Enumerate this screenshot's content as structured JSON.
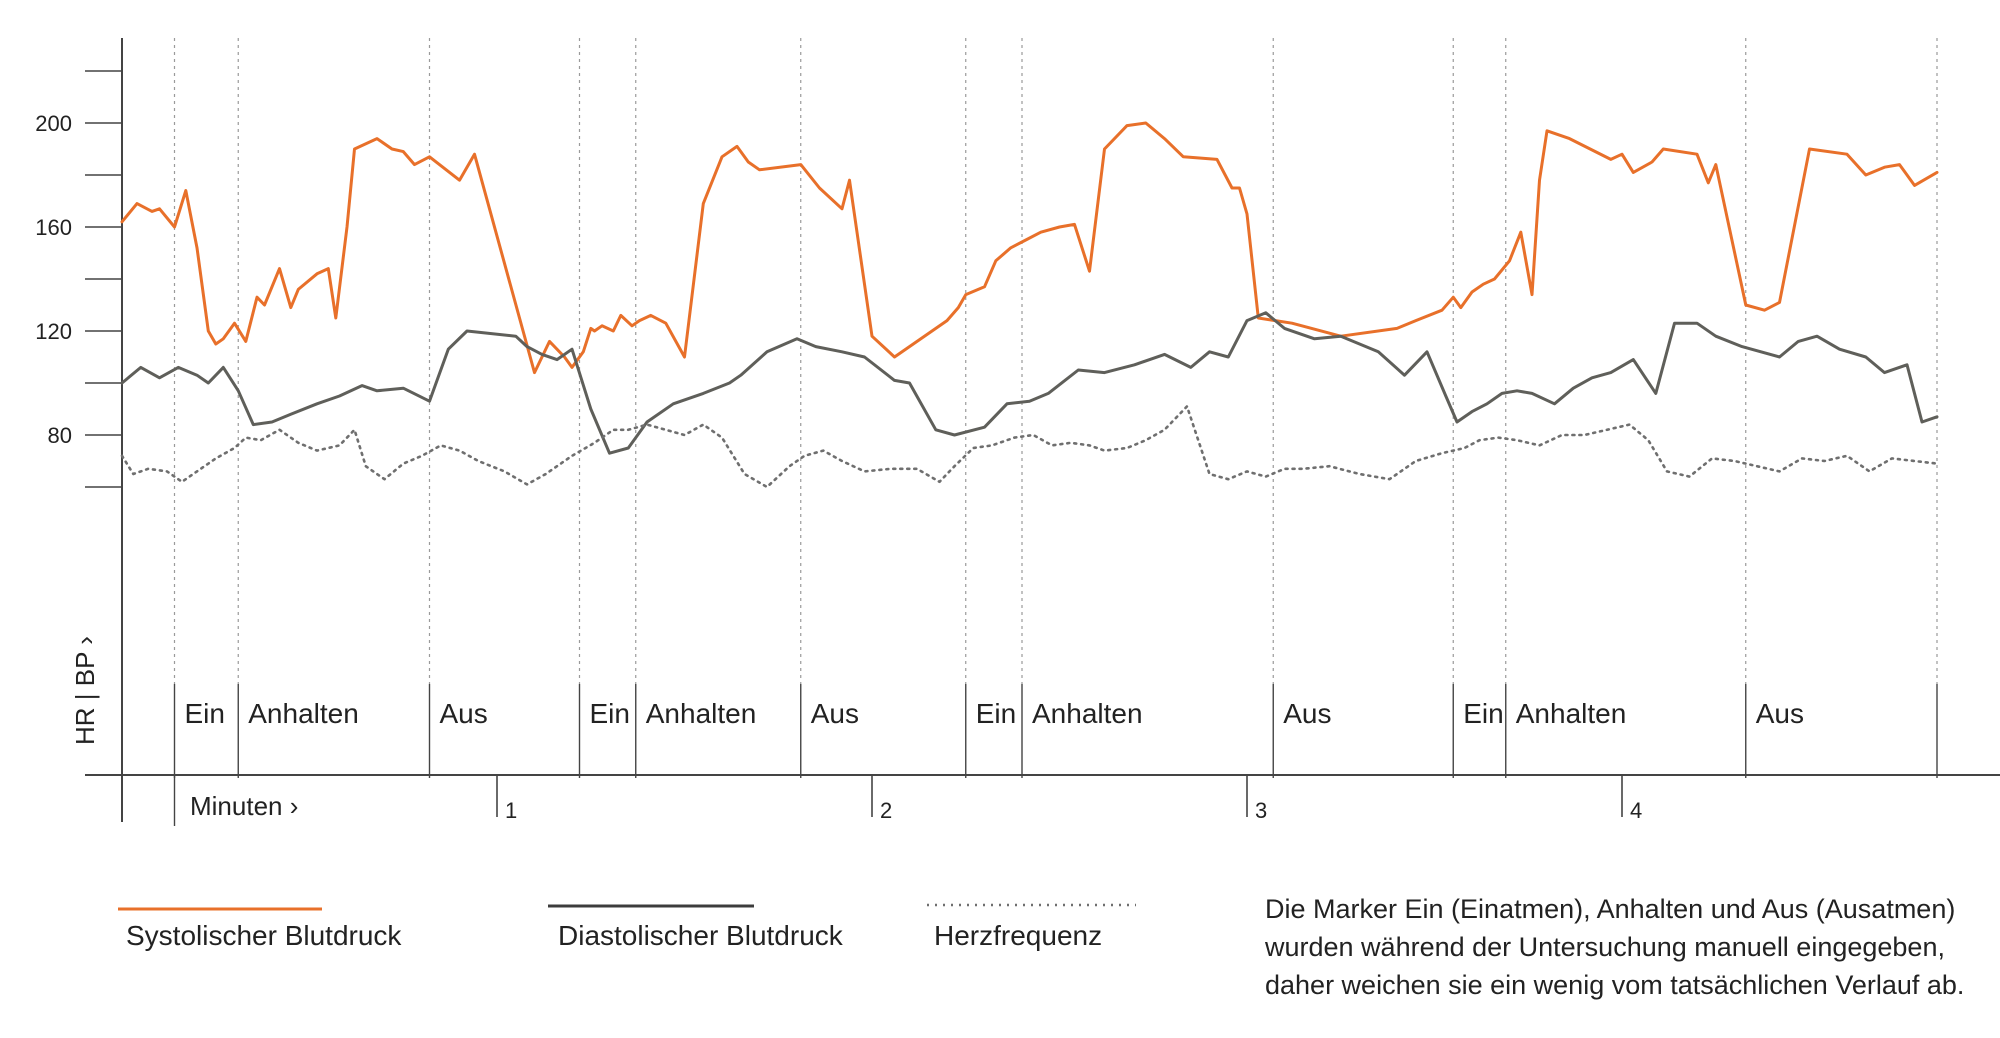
{
  "chart_data": {
    "type": "line",
    "title": "",
    "ylabel": "HR | BP ›",
    "xlabel": "Minuten ›",
    "ylim": [
      40,
      230
    ],
    "xlim": [
      0,
      4.84
    ],
    "y_ticks": [
      "200",
      "160",
      "120",
      "80"
    ],
    "y_tick_values": [
      200,
      160,
      120,
      80
    ],
    "y_minor_ticks": [
      60,
      100,
      140,
      180,
      220
    ],
    "x_ticks": [
      "1",
      "2",
      "3",
      "4"
    ],
    "x_tick_values": [
      1,
      2,
      3,
      4
    ],
    "phases": [
      {
        "label": "Ein",
        "start": 0.14
      },
      {
        "label": "Anhalten",
        "start": 0.31
      },
      {
        "label": "Aus",
        "start": 0.82
      },
      {
        "label": "Ein",
        "start": 1.22
      },
      {
        "label": "Anhalten",
        "start": 1.37
      },
      {
        "label": "Aus",
        "start": 1.81
      },
      {
        "label": "Ein",
        "start": 2.25
      },
      {
        "label": "Anhalten",
        "start": 2.4
      },
      {
        "label": "Aus",
        "start": 3.07
      },
      {
        "label": "Ein",
        "start": 3.55
      },
      {
        "label": "Anhalten",
        "start": 3.69
      },
      {
        "label": "Aus",
        "start": 4.33
      }
    ],
    "phase_end": 4.84,
    "colors": {
      "systolic": "#e8702a",
      "diastolic": "#5f5f5a",
      "heart_rate": "#6f6f6f",
      "axis": "#444444",
      "grid": "#9a9a9a"
    },
    "series": [
      {
        "name": "Systolischer Blutdruck",
        "x": [
          0,
          0.04,
          0.08,
          0.1,
          0.14,
          0.17,
          0.2,
          0.23,
          0.25,
          0.27,
          0.3,
          0.33,
          0.36,
          0.38,
          0.42,
          0.45,
          0.47,
          0.52,
          0.55,
          0.57,
          0.6,
          0.62,
          0.68,
          0.72,
          0.75,
          0.78,
          0.82,
          0.9,
          0.94,
          1.1,
          1.14,
          1.18,
          1.2,
          1.23,
          1.25,
          1.26,
          1.28,
          1.31,
          1.33,
          1.36,
          1.38,
          1.41,
          1.45,
          1.5,
          1.55,
          1.6,
          1.64,
          1.67,
          1.7,
          1.81,
          1.86,
          1.92,
          1.94,
          2.0,
          2.06,
          2.2,
          2.23,
          2.25,
          2.3,
          2.33,
          2.37,
          2.41,
          2.45,
          2.5,
          2.54,
          2.58,
          2.62,
          2.68,
          2.73,
          2.78,
          2.83,
          2.92,
          2.96,
          2.98,
          3.0,
          3.03,
          3.12,
          3.25,
          3.4,
          3.45,
          3.52,
          3.55,
          3.57,
          3.6,
          3.63,
          3.66,
          3.7,
          3.73,
          3.76,
          3.78,
          3.8,
          3.86,
          3.97,
          4.0,
          4.03,
          4.08,
          4.11,
          4.2,
          4.23,
          4.25,
          4.33,
          4.38,
          4.42,
          4.5,
          4.6,
          4.65,
          4.7,
          4.74,
          4.78,
          4.84
        ],
        "values": [
          162,
          169,
          166,
          167,
          160,
          174,
          152,
          120,
          115,
          117,
          123,
          116,
          133,
          130,
          144,
          129,
          136,
          142,
          144,
          125,
          160,
          190,
          194,
          190,
          189,
          184,
          187,
          178,
          188,
          104,
          116,
          110,
          106,
          112,
          121,
          120,
          122,
          120,
          126,
          122,
          124,
          126,
          123,
          110,
          169,
          187,
          191,
          185,
          182,
          184,
          175,
          167,
          178,
          118,
          110,
          124,
          129,
          134,
          137,
          147,
          152,
          155,
          158,
          160,
          161,
          143,
          190,
          199,
          200,
          194,
          187,
          186,
          175,
          175,
          165,
          125,
          123,
          118,
          121,
          124,
          128,
          133,
          129,
          135,
          138,
          140,
          147,
          158,
          134,
          178,
          197,
          194,
          186,
          188,
          181,
          185,
          190,
          188,
          177,
          184,
          130,
          128,
          131,
          190,
          188,
          180,
          183,
          184,
          176,
          181
        ],
        "style": "solid"
      },
      {
        "name": "Diastolischer Blutdruck",
        "x": [
          0,
          0.05,
          0.1,
          0.15,
          0.2,
          0.23,
          0.27,
          0.31,
          0.35,
          0.4,
          0.45,
          0.52,
          0.58,
          0.64,
          0.68,
          0.75,
          0.82,
          0.87,
          0.92,
          1.05,
          1.08,
          1.12,
          1.16,
          1.2,
          1.25,
          1.3,
          1.35,
          1.4,
          1.47,
          1.55,
          1.62,
          1.65,
          1.72,
          1.8,
          1.85,
          1.92,
          1.98,
          2.06,
          2.1,
          2.17,
          2.22,
          2.3,
          2.36,
          2.42,
          2.47,
          2.55,
          2.62,
          2.7,
          2.78,
          2.85,
          2.9,
          2.95,
          3.0,
          3.05,
          3.1,
          3.18,
          3.25,
          3.35,
          3.42,
          3.48,
          3.53,
          3.56,
          3.6,
          3.64,
          3.68,
          3.72,
          3.76,
          3.82,
          3.87,
          3.92,
          3.97,
          4.03,
          4.09,
          4.14,
          4.2,
          4.25,
          4.32,
          4.42,
          4.47,
          4.52,
          4.58,
          4.65,
          4.7,
          4.76,
          4.8,
          4.84
        ],
        "values": [
          100,
          106,
          102,
          106,
          103,
          100,
          106,
          97,
          84,
          85,
          88,
          92,
          95,
          99,
          97,
          98,
          93,
          113,
          120,
          118,
          114,
          111,
          109,
          113,
          90,
          73,
          75,
          85,
          92,
          96,
          100,
          103,
          112,
          117,
          114,
          112,
          110,
          101,
          100,
          82,
          80,
          83,
          92,
          93,
          96,
          105,
          104,
          107,
          111,
          106,
          112,
          110,
          124,
          127,
          121,
          117,
          118,
          112,
          103,
          112,
          95,
          85,
          89,
          92,
          96,
          97,
          96,
          92,
          98,
          102,
          104,
          109,
          96,
          123,
          123,
          118,
          114,
          110,
          116,
          118,
          113,
          110,
          104,
          107,
          85,
          87
        ],
        "style": "solid"
      },
      {
        "name": "Herzfrequenz",
        "x": [
          0,
          0.03,
          0.07,
          0.12,
          0.16,
          0.2,
          0.25,
          0.3,
          0.33,
          0.37,
          0.42,
          0.47,
          0.52,
          0.58,
          0.62,
          0.65,
          0.7,
          0.75,
          0.8,
          0.85,
          0.9,
          0.95,
          1.02,
          1.08,
          1.13,
          1.2,
          1.26,
          1.31,
          1.35,
          1.4,
          1.45,
          1.5,
          1.55,
          1.6,
          1.66,
          1.72,
          1.78,
          1.82,
          1.87,
          1.92,
          1.98,
          2.05,
          2.12,
          2.18,
          2.22,
          2.27,
          2.32,
          2.38,
          2.43,
          2.48,
          2.53,
          2.58,
          2.62,
          2.68,
          2.73,
          2.78,
          2.84,
          2.9,
          2.95,
          3.0,
          3.05,
          3.1,
          3.15,
          3.22,
          3.3,
          3.38,
          3.45,
          3.52,
          3.58,
          3.62,
          3.67,
          3.72,
          3.78,
          3.84,
          3.9,
          3.96,
          4.02,
          4.07,
          4.12,
          4.18,
          4.24,
          4.3,
          4.36,
          4.42,
          4.48,
          4.54,
          4.6,
          4.66,
          4.72,
          4.78,
          4.84
        ],
        "values": [
          72,
          65,
          67,
          66,
          62,
          66,
          71,
          75,
          79,
          78,
          82,
          77,
          74,
          76,
          82,
          68,
          63,
          69,
          72,
          76,
          74,
          70,
          66,
          61,
          65,
          72,
          77,
          82,
          82,
          84,
          82,
          80,
          84,
          79,
          65,
          60,
          68,
          72,
          74,
          70,
          66,
          67,
          67,
          62,
          68,
          75,
          76,
          79,
          80,
          76,
          77,
          76,
          74,
          75,
          78,
          82,
          91,
          65,
          63,
          66,
          64,
          67,
          67,
          68,
          65,
          63,
          70,
          73,
          75,
          78,
          79,
          78,
          76,
          80,
          80,
          82,
          84,
          78,
          66,
          64,
          71,
          70,
          68,
          66,
          71,
          70,
          72,
          66,
          71,
          70,
          69
        ],
        "style": "dotted"
      }
    ]
  },
  "legend": {
    "systolic": "Systolischer Blutdruck",
    "diastolic": "Diastolischer Blutdruck",
    "heart_rate": "Herzfrequenz"
  },
  "note": {
    "line1": "Die Marker Ein (Einatmen), Anhalten und Aus (Ausatmen)",
    "line2": "wurden während der Untersuchung manuell eingegeben,",
    "line3": "daher weichen sie ein wenig vom tatsächlichen Verlauf ab."
  }
}
